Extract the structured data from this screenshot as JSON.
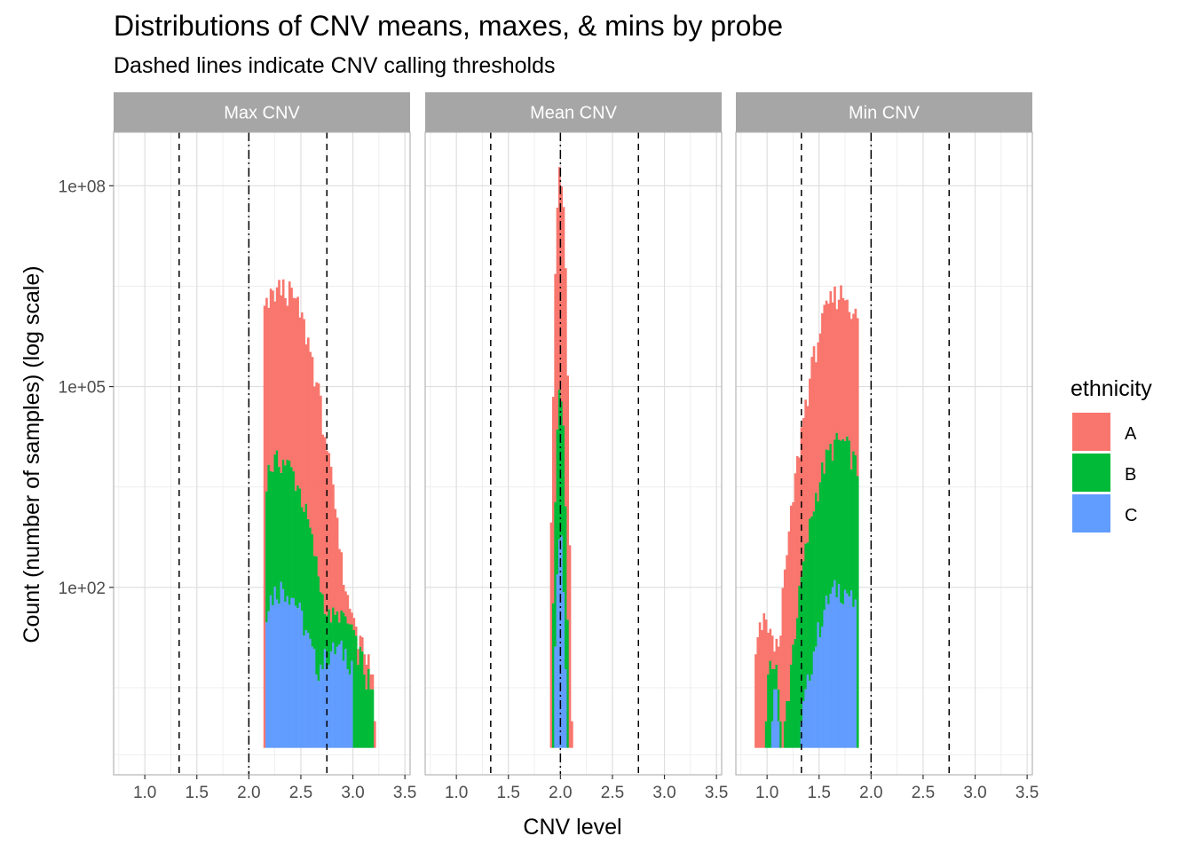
{
  "chart_data": {
    "type": "bar",
    "title": "Distributions of CNV means, maxes, & mins by probe",
    "subtitle": "Dashed lines indicate CNV calling thresholds",
    "xlabel": "CNV level",
    "ylabel": "Count (number of samples) (log scale)",
    "xlim": [
      0.7,
      3.55
    ],
    "ylim_log10": [
      -0.8,
      8.8
    ],
    "y_scale": "log10",
    "x_ticks": [
      1.0,
      1.5,
      2.0,
      2.5,
      3.0,
      3.5
    ],
    "x_tick_labels": [
      "1.0",
      "1.5",
      "2.0",
      "2.5",
      "3.0",
      "3.5"
    ],
    "y_ticks": [
      100,
      100000,
      100000000
    ],
    "y_tick_labels": [
      "1e+02",
      "1e+05",
      "1e+08"
    ],
    "grid": true,
    "stacked": true,
    "bin_width": 0.02,
    "reference_lines": [
      {
        "x": 1.33,
        "style": "dashed"
      },
      {
        "x": 2.0,
        "style": "dotdash"
      },
      {
        "x": 2.75,
        "style": "dashed"
      }
    ],
    "legend": {
      "title": "ethnicity",
      "position": "right",
      "entries": [
        {
          "name": "A",
          "color": "#F8766D"
        },
        {
          "name": "B",
          "color": "#00BA38"
        },
        {
          "name": "C",
          "color": "#619CFF"
        }
      ]
    },
    "panels": [
      {
        "label": "Max CNV",
        "series": [
          {
            "name": "A",
            "peaks": [
              {
                "center": 2.32,
                "sigma": 0.13,
                "height": 3000000
              },
              {
                "center": 2.9,
                "sigma": 0.14,
                "height": 14
              }
            ],
            "range": [
              2.14,
              3.28
            ]
          },
          {
            "name": "B",
            "peaks": [
              {
                "center": 2.3,
                "sigma": 0.13,
                "height": 8000
              },
              {
                "center": 2.88,
                "sigma": 0.14,
                "height": 25
              }
            ],
            "range": [
              2.16,
              3.2
            ]
          },
          {
            "name": "C",
            "peaks": [
              {
                "center": 2.32,
                "sigma": 0.13,
                "height": 100
              },
              {
                "center": 2.86,
                "sigma": 0.14,
                "height": 12
              }
            ],
            "range": [
              2.16,
              3.0
            ]
          }
        ]
      },
      {
        "label": "Mean CNV",
        "series": [
          {
            "name": "A",
            "peaks": [
              {
                "center": 2.0,
                "sigma": 0.018,
                "height": 200000000
              }
            ],
            "range": [
              1.9,
              2.12
            ]
          },
          {
            "name": "B",
            "peaks": [
              {
                "center": 2.0,
                "sigma": 0.018,
                "height": 80000
              }
            ],
            "range": [
              1.9,
              2.12
            ]
          },
          {
            "name": "C",
            "peaks": [
              {
                "center": 2.0,
                "sigma": 0.018,
                "height": 500
              }
            ],
            "range": [
              1.9,
              2.12
            ]
          }
        ]
      },
      {
        "label": "Min CNV",
        "series": [
          {
            "name": "A",
            "peaks": [
              {
                "center": 1.7,
                "sigma": 0.12,
                "height": 2500000
              },
              {
                "center": 0.97,
                "sigma": 0.05,
                "height": 30
              }
            ],
            "range": [
              0.88,
              1.88
            ]
          },
          {
            "name": "B",
            "peaks": [
              {
                "center": 1.7,
                "sigma": 0.12,
                "height": 15000
              },
              {
                "center": 1.05,
                "sigma": 0.04,
                "height": 6
              }
            ],
            "range": [
              0.9,
              1.88
            ]
          },
          {
            "name": "C",
            "peaks": [
              {
                "center": 1.7,
                "sigma": 0.12,
                "height": 100
              },
              {
                "center": 1.08,
                "sigma": 0.03,
                "height": 3
              }
            ],
            "range": [
              0.9,
              1.86
            ]
          }
        ]
      }
    ]
  }
}
